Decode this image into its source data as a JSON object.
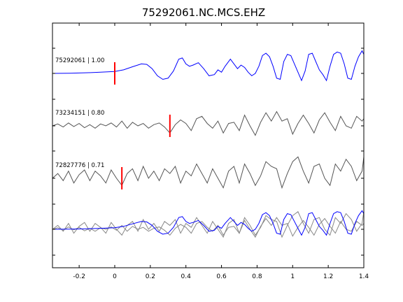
{
  "chart_data": {
    "type": "line",
    "title": "75292061.NC.MCS.EHZ",
    "xlabel": "",
    "ylabel": "",
    "xlim": [
      -0.35,
      1.4
    ],
    "x_ticks": [
      -0.2,
      0,
      0.2,
      0.4,
      0.6,
      0.8,
      1,
      1.2,
      1.4
    ],
    "x_tick_labels": [
      "-0.2",
      "0",
      "0.2",
      "0.4",
      "0.6",
      "0.8",
      "1",
      "1.2",
      "1.4"
    ],
    "grid": false,
    "colors": {
      "target": "#0000ff",
      "neighbor": "#555555",
      "stack_neighbor": "#888888",
      "pick": "#ff0000"
    },
    "traces": [
      {
        "label": "75292061 | 1.00",
        "color": "#0000ff",
        "pick_time": 0.0,
        "samples_x": [
          -0.35,
          -0.25,
          -0.15,
          -0.08,
          0.0,
          0.05,
          0.1,
          0.15,
          0.18,
          0.21,
          0.24,
          0.27,
          0.3,
          0.33,
          0.36,
          0.38,
          0.4,
          0.42,
          0.44,
          0.47,
          0.5,
          0.53,
          0.56,
          0.58,
          0.6,
          0.62,
          0.65,
          0.67,
          0.69,
          0.71,
          0.73,
          0.75,
          0.77,
          0.79,
          0.81,
          0.83,
          0.85,
          0.87,
          0.89,
          0.91,
          0.93,
          0.95,
          0.97,
          0.99,
          1.01,
          1.03,
          1.05,
          1.07,
          1.09,
          1.11,
          1.13,
          1.15,
          1.17,
          1.19,
          1.21,
          1.23,
          1.25,
          1.27,
          1.29,
          1.31,
          1.33,
          1.35,
          1.37,
          1.39,
          1.4
        ],
        "samples_y": [
          0.0,
          0.01,
          0.03,
          0.05,
          0.08,
          0.15,
          0.28,
          0.4,
          0.38,
          0.2,
          -0.1,
          -0.25,
          -0.2,
          0.1,
          0.6,
          0.65,
          0.4,
          0.3,
          0.35,
          0.45,
          0.2,
          -0.1,
          -0.05,
          0.15,
          0.05,
          0.3,
          0.6,
          0.4,
          0.2,
          0.35,
          0.25,
          0.05,
          -0.1,
          0.0,
          0.3,
          0.75,
          0.85,
          0.7,
          0.3,
          -0.2,
          -0.25,
          0.5,
          0.8,
          0.75,
          0.4,
          0.05,
          -0.3,
          0.1,
          0.8,
          0.85,
          0.5,
          0.15,
          -0.05,
          -0.3,
          0.3,
          0.8,
          0.9,
          0.85,
          0.4,
          -0.2,
          -0.25,
          0.3,
          0.7,
          0.95,
          0.8
        ]
      },
      {
        "label": "73234151 | 0.80",
        "color": "#555555",
        "pick_time": 0.31,
        "samples_x": [
          -0.35,
          -0.32,
          -0.29,
          -0.26,
          -0.23,
          -0.2,
          -0.17,
          -0.14,
          -0.11,
          -0.08,
          -0.05,
          -0.02,
          0.01,
          0.04,
          0.07,
          0.1,
          0.13,
          0.16,
          0.19,
          0.22,
          0.25,
          0.28,
          0.31,
          0.34,
          0.37,
          0.4,
          0.43,
          0.46,
          0.49,
          0.52,
          0.55,
          0.58,
          0.61,
          0.64,
          0.67,
          0.7,
          0.73,
          0.76,
          0.79,
          0.82,
          0.85,
          0.88,
          0.91,
          0.94,
          0.97,
          1.0,
          1.03,
          1.06,
          1.09,
          1.12,
          1.15,
          1.18,
          1.21,
          1.24,
          1.27,
          1.3,
          1.33,
          1.36,
          1.39,
          1.4
        ],
        "samples_y": [
          0.0,
          0.08,
          -0.05,
          0.12,
          -0.03,
          0.1,
          -0.08,
          0.05,
          -0.1,
          0.08,
          0.0,
          0.12,
          -0.05,
          0.2,
          -0.1,
          0.15,
          0.0,
          0.1,
          -0.1,
          0.05,
          0.12,
          -0.05,
          -0.3,
          0.05,
          0.25,
          0.1,
          -0.2,
          0.3,
          0.4,
          0.1,
          -0.1,
          0.2,
          -0.3,
          0.1,
          0.15,
          -0.2,
          0.45,
          0.0,
          -0.4,
          0.15,
          0.55,
          0.2,
          0.6,
          0.2,
          0.3,
          -0.35,
          0.1,
          0.45,
          0.1,
          -0.3,
          0.25,
          0.55,
          0.15,
          -0.2,
          0.4,
          0.0,
          -0.1,
          0.4,
          0.2,
          0.3
        ]
      },
      {
        "label": "72827776 | 0.71",
        "color": "#555555",
        "pick_time": 0.04,
        "samples_x": [
          -0.35,
          -0.32,
          -0.29,
          -0.26,
          -0.23,
          -0.2,
          -0.17,
          -0.14,
          -0.11,
          -0.08,
          -0.05,
          -0.02,
          0.01,
          0.04,
          0.07,
          0.1,
          0.13,
          0.16,
          0.19,
          0.22,
          0.25,
          0.28,
          0.31,
          0.34,
          0.37,
          0.4,
          0.43,
          0.46,
          0.49,
          0.52,
          0.55,
          0.58,
          0.61,
          0.64,
          0.67,
          0.7,
          0.73,
          0.76,
          0.79,
          0.82,
          0.85,
          0.88,
          0.91,
          0.94,
          0.97,
          1.0,
          1.03,
          1.06,
          1.09,
          1.12,
          1.15,
          1.18,
          1.21,
          1.24,
          1.27,
          1.3,
          1.33,
          1.36,
          1.39,
          1.4
        ],
        "samples_y": [
          0.0,
          0.2,
          -0.1,
          0.3,
          -0.2,
          0.15,
          0.35,
          -0.1,
          0.3,
          0.1,
          -0.2,
          0.35,
          0.0,
          -0.3,
          0.2,
          0.4,
          -0.1,
          0.5,
          0.0,
          0.3,
          -0.1,
          0.4,
          0.2,
          0.5,
          -0.2,
          0.3,
          0.1,
          0.6,
          0.2,
          -0.2,
          0.4,
          0.0,
          -0.4,
          0.3,
          0.5,
          -0.2,
          0.6,
          0.2,
          -0.3,
          0.1,
          0.7,
          0.5,
          0.4,
          -0.4,
          0.2,
          0.7,
          0.9,
          0.3,
          -0.2,
          0.5,
          0.6,
          0.0,
          -0.3,
          0.6,
          0.3,
          0.8,
          0.5,
          -0.1,
          0.3,
          0.9
        ]
      }
    ]
  }
}
